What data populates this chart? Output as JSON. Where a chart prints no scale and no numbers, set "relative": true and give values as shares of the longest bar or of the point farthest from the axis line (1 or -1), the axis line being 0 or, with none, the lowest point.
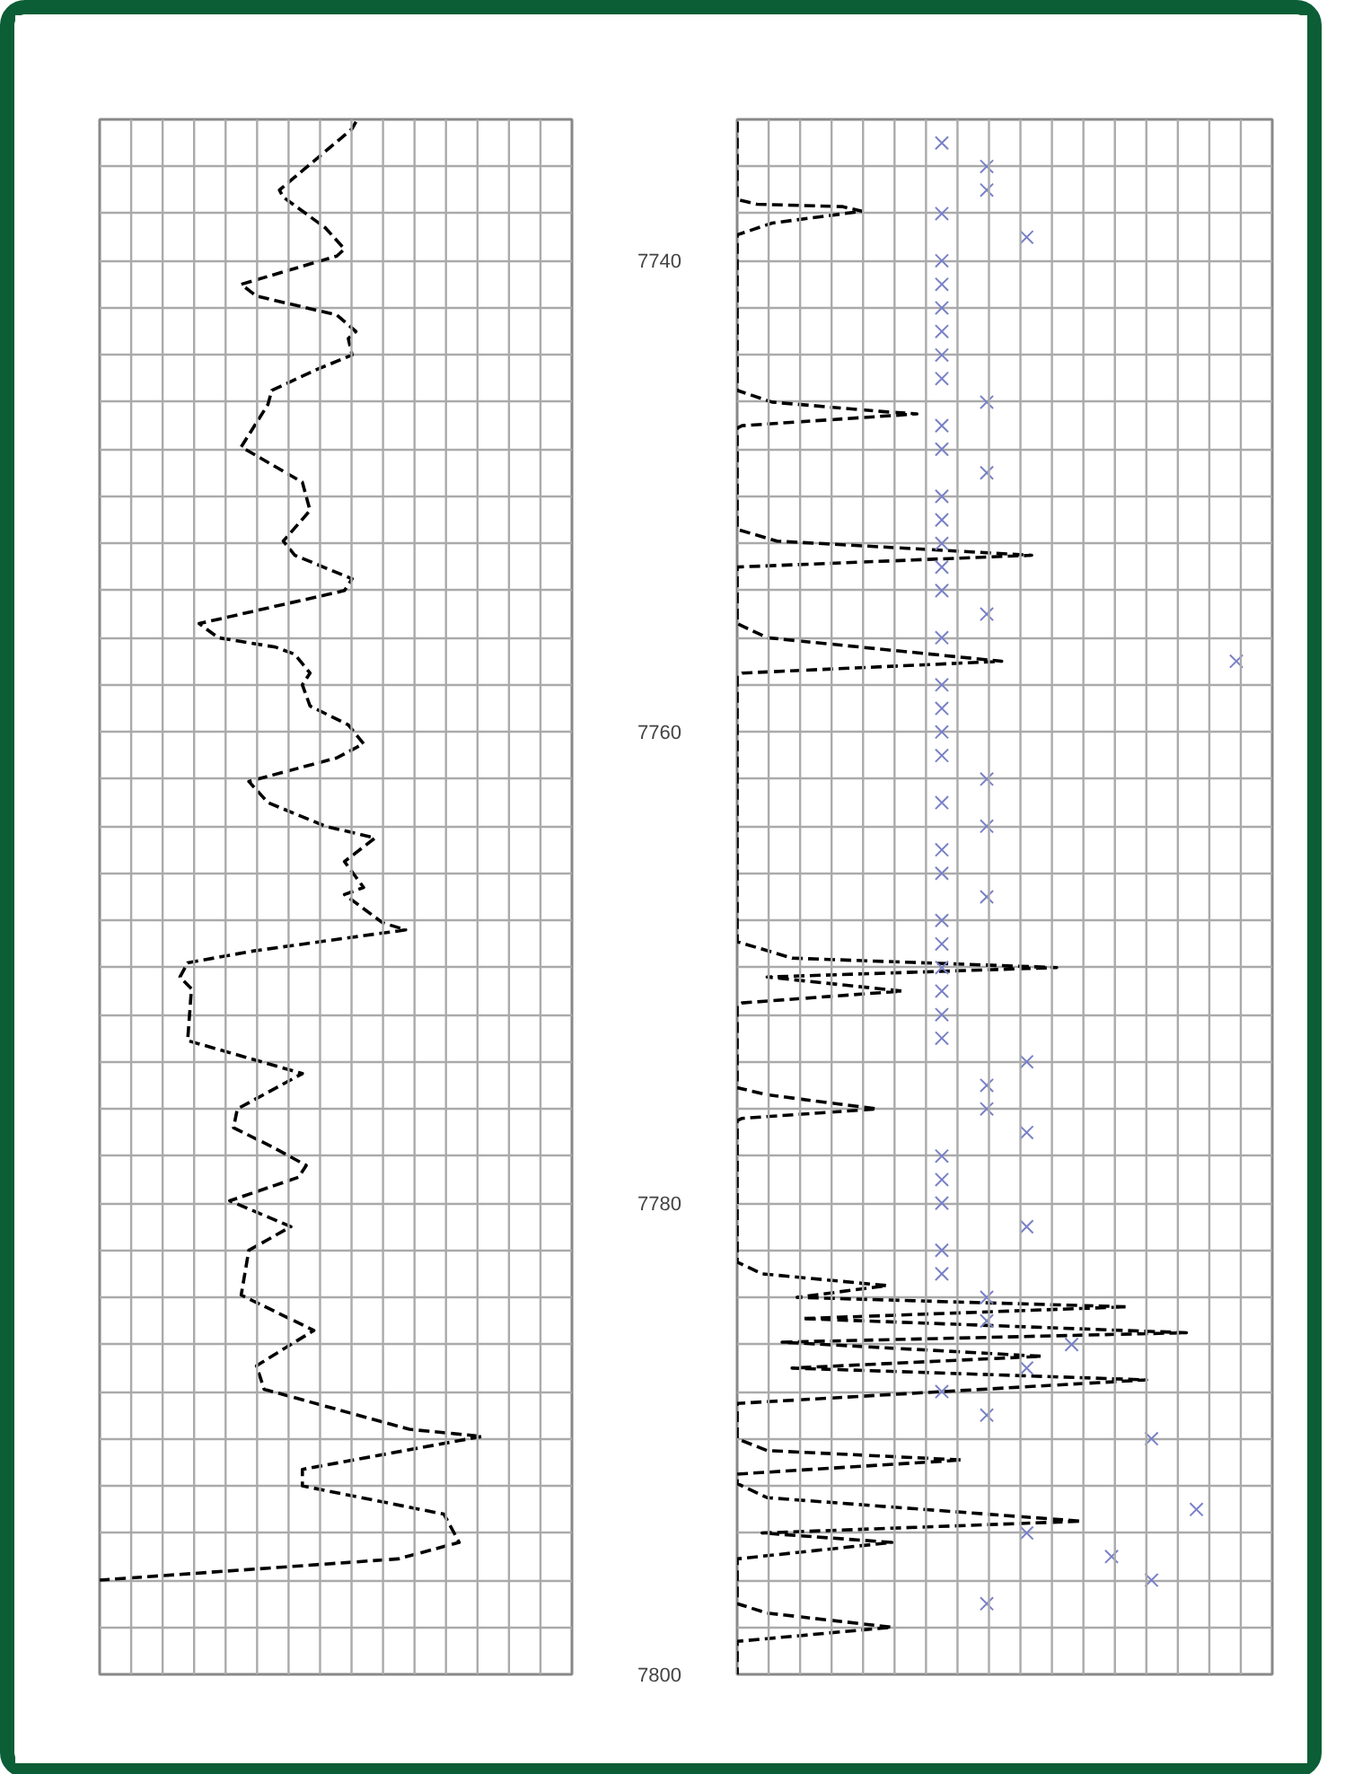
{
  "chart_data": [
    {
      "type": "line",
      "orientation": "horizontal",
      "relative": true,
      "color": "#000000",
      "line_style": "dashed",
      "marker": "none",
      "grid": true,
      "tick_labels": false,
      "ylim": [
        7800,
        7734
      ],
      "yticks": [
        {
          "value": 7736,
          "label": null
        },
        {
          "value": 7738,
          "label": null
        },
        7740,
        {
          "value": 7742,
          "label": null
        },
        {
          "value": 7744,
          "label": null
        },
        {
          "value": 7746,
          "label": null
        },
        {
          "value": 7748,
          "label": null
        },
        {
          "value": 7750,
          "label": null
        },
        {
          "value": 7752,
          "label": null
        },
        {
          "value": 7754,
          "label": null
        },
        {
          "value": 7756,
          "label": null
        },
        {
          "value": 7758,
          "label": null
        },
        7760,
        {
          "value": 7762,
          "label": null
        },
        {
          "value": 7764,
          "label": null
        },
        {
          "value": 7766,
          "label": null
        },
        {
          "value": 7768,
          "label": null
        },
        {
          "value": 7770,
          "label": null
        },
        {
          "value": 7772,
          "label": null
        },
        {
          "value": 7774,
          "label": null
        },
        {
          "value": 7776,
          "label": null
        },
        {
          "value": 7778,
          "label": null
        },
        7780,
        {
          "value": 7782,
          "label": null
        },
        {
          "value": 7784,
          "label": null
        },
        {
          "value": 7786,
          "label": null
        },
        {
          "value": 7788,
          "label": null
        },
        {
          "value": 7790,
          "label": null
        },
        {
          "value": 7792,
          "label": null
        },
        {
          "value": 7794,
          "label": null
        },
        {
          "value": 7796,
          "label": null
        },
        {
          "value": 7798,
          "label": null
        },
        7800
      ],
      "x": [
        7734.1,
        7734.4,
        7737.0,
        7737.3,
        7738.6,
        7739.5,
        7739.8,
        7741.0,
        7741.5,
        7742.3,
        7743.0,
        7743.3,
        7744.0,
        7744.6,
        7745.5,
        7746.1,
        7747.9,
        7749.4,
        7750.6,
        7751.9,
        7752.5,
        7753.5,
        7754.0,
        7755.4,
        7756.0,
        7756.4,
        7756.7,
        7757.5,
        7758.0,
        7758.9,
        7759.7,
        7760.5,
        7761.1,
        7762.1,
        7763.0,
        7764.0,
        7764.5,
        7765.5,
        7766.6,
        7766.9,
        7768.1,
        7768.4,
        7769.3,
        7769.8,
        7770.4,
        7770.9,
        7773.1,
        7773.8,
        7774.5,
        7776.0,
        7776.8,
        7777.6,
        7778.4,
        7778.9,
        7779.9,
        7781.0,
        7782.0,
        7783.9,
        7785.4,
        7786.9,
        7787.9,
        7789.6,
        7789.9,
        7791.3,
        7792.0,
        7793.2,
        7794.4,
        7795.1,
        7796.0
      ],
      "values": [
        0.67,
        0.66,
        0.47,
        0.48,
        0.59,
        0.64,
        0.62,
        0.37,
        0.41,
        0.62,
        0.67,
        0.65,
        0.66,
        0.57,
        0.45,
        0.44,
        0.37,
        0.53,
        0.55,
        0.48,
        0.51,
        0.66,
        0.64,
        0.26,
        0.31,
        0.46,
        0.51,
        0.55,
        0.53,
        0.55,
        0.65,
        0.69,
        0.62,
        0.39,
        0.44,
        0.59,
        0.72,
        0.64,
        0.69,
        0.64,
        0.74,
        0.8,
        0.4,
        0.23,
        0.21,
        0.24,
        0.23,
        0.38,
        0.53,
        0.36,
        0.35,
        0.45,
        0.54,
        0.52,
        0.34,
        0.5,
        0.39,
        0.37,
        0.56,
        0.41,
        0.43,
        0.81,
        1,
        0.53,
        0.53,
        0.9,
        0.94,
        0.78,
        0
      ]
    },
    {
      "type": "line",
      "orientation": "horizontal",
      "relative": true,
      "grid": true,
      "tick_labels": "y",
      "ylim": [
        7800,
        7734
      ],
      "yticks": [
        {
          "value": 7736,
          "label": null
        },
        {
          "value": 7738,
          "label": null
        },
        7740,
        {
          "value": 7742,
          "label": null
        },
        {
          "value": 7744,
          "label": null
        },
        {
          "value": 7746,
          "label": null
        },
        {
          "value": 7748,
          "label": null
        },
        {
          "value": 7750,
          "label": null
        },
        {
          "value": 7752,
          "label": null
        },
        {
          "value": 7754,
          "label": null
        },
        {
          "value": 7756,
          "label": null
        },
        {
          "value": 7758,
          "label": null
        },
        7760,
        {
          "value": 7762,
          "label": null
        },
        {
          "value": 7764,
          "label": null
        },
        {
          "value": 7766,
          "label": null
        },
        {
          "value": 7768,
          "label": null
        },
        {
          "value": 7770,
          "label": null
        },
        {
          "value": 7772,
          "label": null
        },
        {
          "value": 7774,
          "label": null
        },
        {
          "value": 7776,
          "label": null
        },
        {
          "value": 7778,
          "label": null
        },
        7780,
        {
          "value": 7782,
          "label": null
        },
        {
          "value": 7784,
          "label": null
        },
        {
          "value": 7786,
          "label": null
        },
        {
          "value": 7788,
          "label": null
        },
        {
          "value": 7790,
          "label": null
        },
        {
          "value": 7792,
          "label": null
        },
        {
          "value": 7794,
          "label": null
        },
        {
          "value": 7796,
          "label": null
        },
        {
          "value": 7798,
          "label": null
        },
        7800
      ],
      "series": [
        {
          "type": "line",
          "color": "#000000",
          "line_style": "dashed",
          "x": [
            7734.1,
            7737.4,
            7737.6,
            7737.7,
            7737.9,
            7738.4,
            7738.9,
            7745.5,
            7746.0,
            7746.4,
            7746.5,
            7747.0,
            7747.1,
            7751.4,
            7751.9,
            7752.5,
            7753.0,
            7755.4,
            7756.0,
            7757.0,
            7757.5,
            7757.6,
            7768.9,
            7769.6,
            7770.0,
            7770.4,
            7771.0,
            7771.5,
            7771.6,
            7775.1,
            7775.4,
            7776.0,
            7776.4,
            7776.5,
            7782.5,
            7783.0,
            7783.5,
            7784.0,
            7784.4,
            7784.9,
            7785.5,
            7785.9,
            7786.5,
            7787.0,
            7787.5,
            7788.5,
            7790.0,
            7790.5,
            7790.9,
            7791.5,
            7791.9,
            7792.5,
            7793.5,
            7794.0,
            7794.4,
            7795.1,
            7797.0,
            7797.4,
            7798.0,
            7798.6,
            7800
          ],
          "values": [
            0,
            0,
            0.04,
            0.21,
            0.25,
            0.07,
            0,
            0,
            0.07,
            0.29,
            0.36,
            0.01,
            0,
            0,
            0.08,
            0.59,
            0,
            0,
            0.06,
            0.53,
            0.01,
            0,
            0,
            0.11,
            0.64,
            0.06,
            0.33,
            0.01,
            0,
            0,
            0.06,
            0.28,
            0.01,
            0,
            0,
            0.05,
            0.3,
            0.12,
            0.78,
            0.13,
            0.9,
            0.09,
            0.61,
            0.11,
            0.82,
            0,
            0,
            0.06,
            0.45,
            0,
            0,
            0.06,
            0.69,
            0.05,
            0.31,
            0,
            0,
            0.06,
            0.31,
            0,
            0
          ]
        },
        {
          "type": "scatter",
          "color": "#7880c8",
          "marker": "cross",
          "x": [
            7735,
            7738,
            7740,
            7741,
            7742,
            7743,
            7744,
            7745,
            7747,
            7748,
            7750,
            7751,
            7752,
            7753,
            7754,
            7756,
            7758,
            7759,
            7760,
            7761,
            7763,
            7765,
            7766,
            7768,
            7769,
            7770,
            7771,
            7772,
            7773,
            7778,
            7779,
            7780,
            7782,
            7783,
            7788,
            7736,
            7737,
            7746,
            7749,
            7755,
            7762,
            7764,
            7767,
            7775,
            7776,
            7784,
            7785,
            7789,
            7797,
            7739,
            7774,
            7777,
            7781,
            7787,
            7794,
            7786,
            7790,
            7796,
            7793,
            7795,
            7757
          ],
          "values": [
            0.41,
            0.41,
            0.41,
            0.41,
            0.41,
            0.41,
            0.41,
            0.41,
            0.41,
            0.41,
            0.41,
            0.41,
            0.41,
            0.41,
            0.41,
            0.41,
            0.41,
            0.41,
            0.41,
            0.41,
            0.41,
            0.41,
            0.41,
            0.41,
            0.41,
            0.41,
            0.41,
            0.41,
            0.41,
            0.41,
            0.41,
            0.41,
            0.41,
            0.41,
            0.41,
            0.5,
            0.5,
            0.5,
            0.5,
            0.5,
            0.5,
            0.5,
            0.5,
            0.5,
            0.5,
            0.5,
            0.5,
            0.5,
            0.5,
            0.58,
            0.58,
            0.58,
            0.58,
            0.58,
            0.58,
            0.67,
            0.83,
            0.83,
            0.92,
            0.75,
            1
          ]
        }
      ]
    }
  ]
}
